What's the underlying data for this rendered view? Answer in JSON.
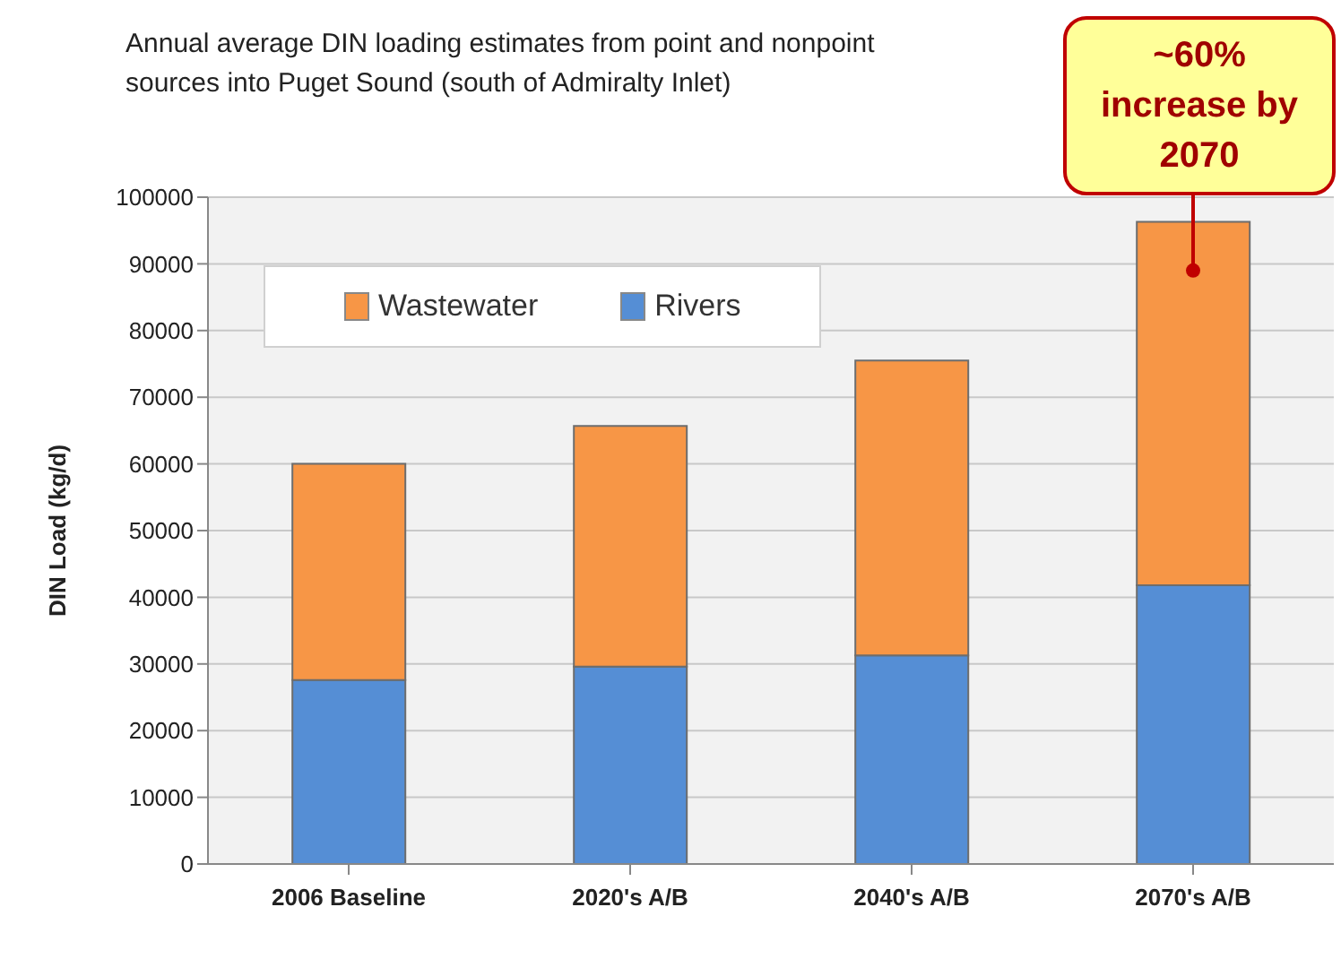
{
  "chart_data": {
    "type": "bar",
    "title": "Annual average DIN loading estimates from point and nonpoint sources into Puget Sound (south of Admiralty Inlet)",
    "ylabel": "DIN Load (kg/d)",
    "categories": [
      "2006 Baseline",
      "2020's A/B",
      "2040's A/B",
      "2070's A/B"
    ],
    "series": [
      {
        "name": "Rivers",
        "color": "#558ed5",
        "values": [
          27600,
          29600,
          31300,
          41800
        ]
      },
      {
        "name": "Wastewater",
        "color": "#f79646",
        "values": [
          32400,
          36100,
          44200,
          54500
        ]
      }
    ],
    "stacked": true,
    "ylim": [
      0,
      100000
    ],
    "yticks": [
      0,
      10000,
      20000,
      30000,
      40000,
      50000,
      60000,
      70000,
      80000,
      90000,
      100000
    ],
    "grid": "y",
    "legend": "top left",
    "annotations": [
      {
        "text": "~60% increase by 2070",
        "x": "2070's A/B",
        "y": 89000
      }
    ]
  }
}
